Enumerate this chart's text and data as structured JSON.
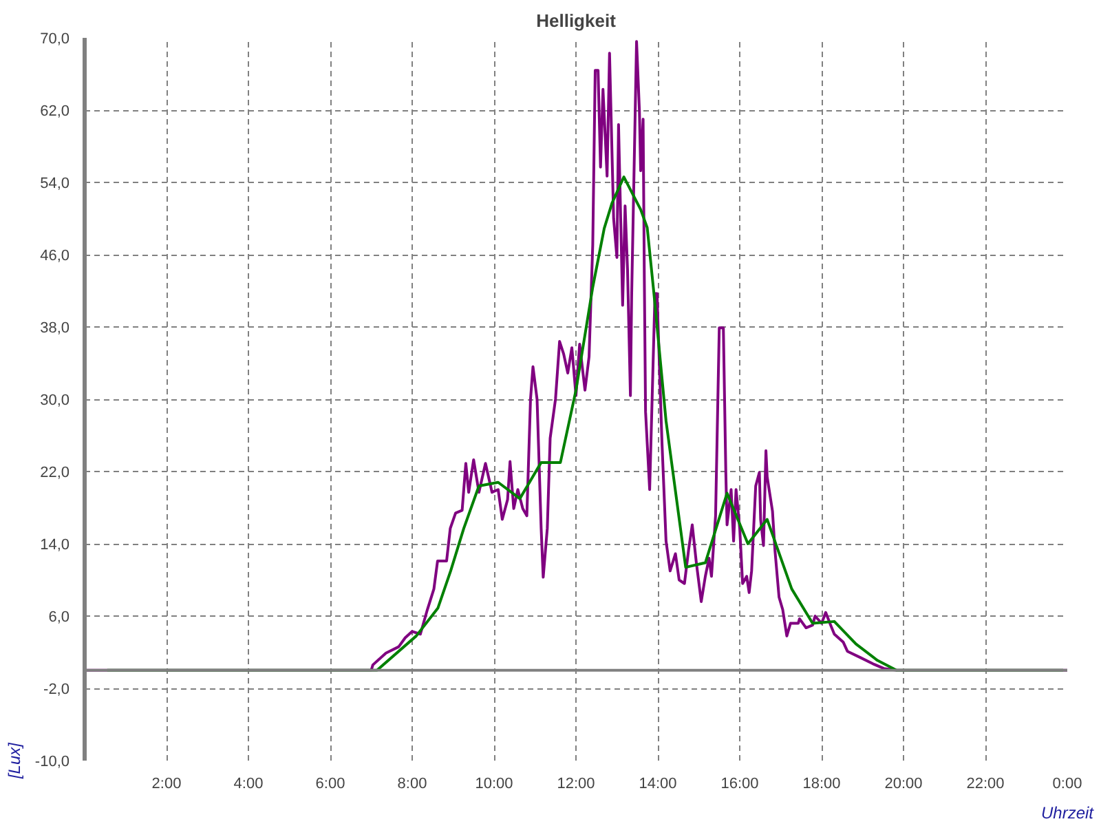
{
  "chart_data": {
    "type": "line",
    "title": "Helligkeit",
    "xlabel": "Uhrzeit",
    "ylabel": "[Lux]",
    "xlim": [
      0,
      24
    ],
    "ylim": [
      -10,
      70
    ],
    "xticks": [
      {
        "value": 0,
        "label": null
      },
      {
        "value": 2,
        "label": "2:00"
      },
      {
        "value": 4,
        "label": "4:00"
      },
      {
        "value": 6,
        "label": "6:00"
      },
      {
        "value": 8,
        "label": "8:00"
      },
      {
        "value": 10,
        "label": "10:00"
      },
      {
        "value": 12,
        "label": "12:00"
      },
      {
        "value": 14,
        "label": "14:00"
      },
      {
        "value": 16,
        "label": "16:00"
      },
      {
        "value": 18,
        "label": "18:00"
      },
      {
        "value": 20,
        "label": "20:00"
      },
      {
        "value": 22,
        "label": "22:00"
      },
      {
        "value": 24,
        "label": "0:00"
      }
    ],
    "yticks": [
      {
        "value": -10,
        "label": "-10,0"
      },
      {
        "value": -2,
        "label": "-2,0"
      },
      {
        "value": 6,
        "label": "6,0"
      },
      {
        "value": 14,
        "label": "14,0"
      },
      {
        "value": 22,
        "label": "22,0"
      },
      {
        "value": 30,
        "label": "30,0"
      },
      {
        "value": 38,
        "label": "38,0"
      },
      {
        "value": 46,
        "label": "46,0"
      },
      {
        "value": 54,
        "label": "54,0"
      },
      {
        "value": 62,
        "label": "62,0"
      },
      {
        "value": 70,
        "label": "70,0"
      }
    ],
    "grid": true,
    "line_style": "solid",
    "ref_lines": [
      {
        "axis": "y",
        "value": 0,
        "label": null,
        "color": "#808080"
      }
    ],
    "series": [
      {
        "color": "#800080",
        "x": [
          0,
          7.0,
          7.04,
          7.36,
          7.67,
          7.83,
          8.0,
          8.2,
          8.37,
          8.53,
          8.62,
          8.84,
          8.93,
          9.06,
          9.22,
          9.31,
          9.38,
          9.5,
          9.63,
          9.79,
          9.95,
          10.1,
          10.2,
          10.33,
          10.39,
          10.48,
          10.58,
          10.7,
          10.8,
          10.89,
          10.95,
          11.05,
          11.15,
          11.2,
          11.3,
          11.37,
          11.5,
          11.6,
          11.7,
          11.8,
          11.9,
          12.0,
          12.09,
          12.22,
          12.32,
          12.41,
          12.47,
          12.54,
          12.6,
          12.66,
          12.72,
          12.76,
          12.82,
          12.92,
          13.0,
          13.04,
          13.14,
          13.2,
          13.26,
          13.33,
          13.36,
          13.48,
          13.55,
          13.58,
          13.64,
          13.67,
          13.7,
          13.8,
          13.86,
          13.93,
          13.98,
          14.1,
          14.2,
          14.3,
          14.43,
          14.52,
          14.65,
          14.75,
          14.84,
          14.94,
          15.06,
          15.16,
          15.25,
          15.31,
          15.41,
          15.5,
          15.6,
          15.66,
          15.69,
          15.79,
          15.85,
          15.91,
          16.0,
          16.07,
          16.17,
          16.23,
          16.29,
          16.39,
          16.48,
          16.51,
          16.58,
          16.64,
          16.67,
          16.8,
          16.86,
          16.96,
          17.05,
          17.15,
          17.24,
          17.43,
          17.46,
          17.62,
          17.78,
          17.84,
          18.0,
          18.1,
          18.22,
          18.31,
          18.53,
          18.63,
          18.95,
          19.26,
          19.52,
          19.83,
          24
        ],
        "values": [
          0,
          0,
          0.6,
          1.9,
          2.6,
          3.6,
          4.3,
          4.0,
          6.7,
          9,
          12.1,
          12.1,
          15.7,
          17.4,
          17.7,
          22.9,
          19.7,
          23.3,
          19.7,
          22.9,
          19.7,
          20,
          16.7,
          18.9,
          23.1,
          17.9,
          20,
          17.9,
          17.1,
          30,
          33.6,
          30,
          15.7,
          10.3,
          15.7,
          25.7,
          30,
          36.4,
          35,
          32.9,
          35.7,
          30.4,
          36.1,
          31,
          34.7,
          47.1,
          66.4,
          66.4,
          55.7,
          64.3,
          58.6,
          54.7,
          68.3,
          50,
          45.7,
          60.4,
          40.4,
          51.4,
          44.3,
          30.4,
          41.4,
          69.6,
          61.9,
          55.3,
          61,
          43.3,
          28.6,
          20,
          30,
          41.7,
          41.7,
          25.3,
          14.3,
          11,
          12.9,
          10,
          9.6,
          13.3,
          16.1,
          11.9,
          7.6,
          10.4,
          12.4,
          10.4,
          17.1,
          37.9,
          37.9,
          21.9,
          16.1,
          20,
          14.3,
          20,
          15.7,
          9.6,
          10.4,
          8.6,
          11,
          20.4,
          21.9,
          16.7,
          13.8,
          24.3,
          21.4,
          17.6,
          13.3,
          8.1,
          6.7,
          3.8,
          5.2,
          5.2,
          5.7,
          4.7,
          5,
          6,
          5.2,
          6.4,
          5,
          4,
          3.1,
          2.1,
          1.4,
          0.7,
          0.2,
          0,
          0
        ]
      },
      {
        "color": "#008000",
        "x": [
          0.55,
          7.14,
          8.1,
          8.63,
          8.94,
          9.26,
          9.63,
          10.1,
          10.63,
          11.15,
          11.62,
          12.0,
          12.41,
          12.69,
          12.88,
          13.17,
          13.58,
          13.74,
          13.9,
          14.2,
          14.68,
          15.16,
          15.69,
          16.2,
          16.67,
          17.27,
          17.78,
          18.31,
          18.84,
          19.36,
          19.83,
          23.9
        ],
        "values": [
          0,
          0,
          3.8,
          6.9,
          11,
          15.7,
          20.4,
          20.8,
          19,
          23,
          23,
          31,
          42.4,
          48.9,
          51.7,
          54.6,
          51,
          49,
          41.9,
          27.6,
          11.4,
          11.9,
          19.6,
          14,
          16.7,
          9,
          5.2,
          5.4,
          2.9,
          1.1,
          0,
          0
        ]
      }
    ]
  }
}
